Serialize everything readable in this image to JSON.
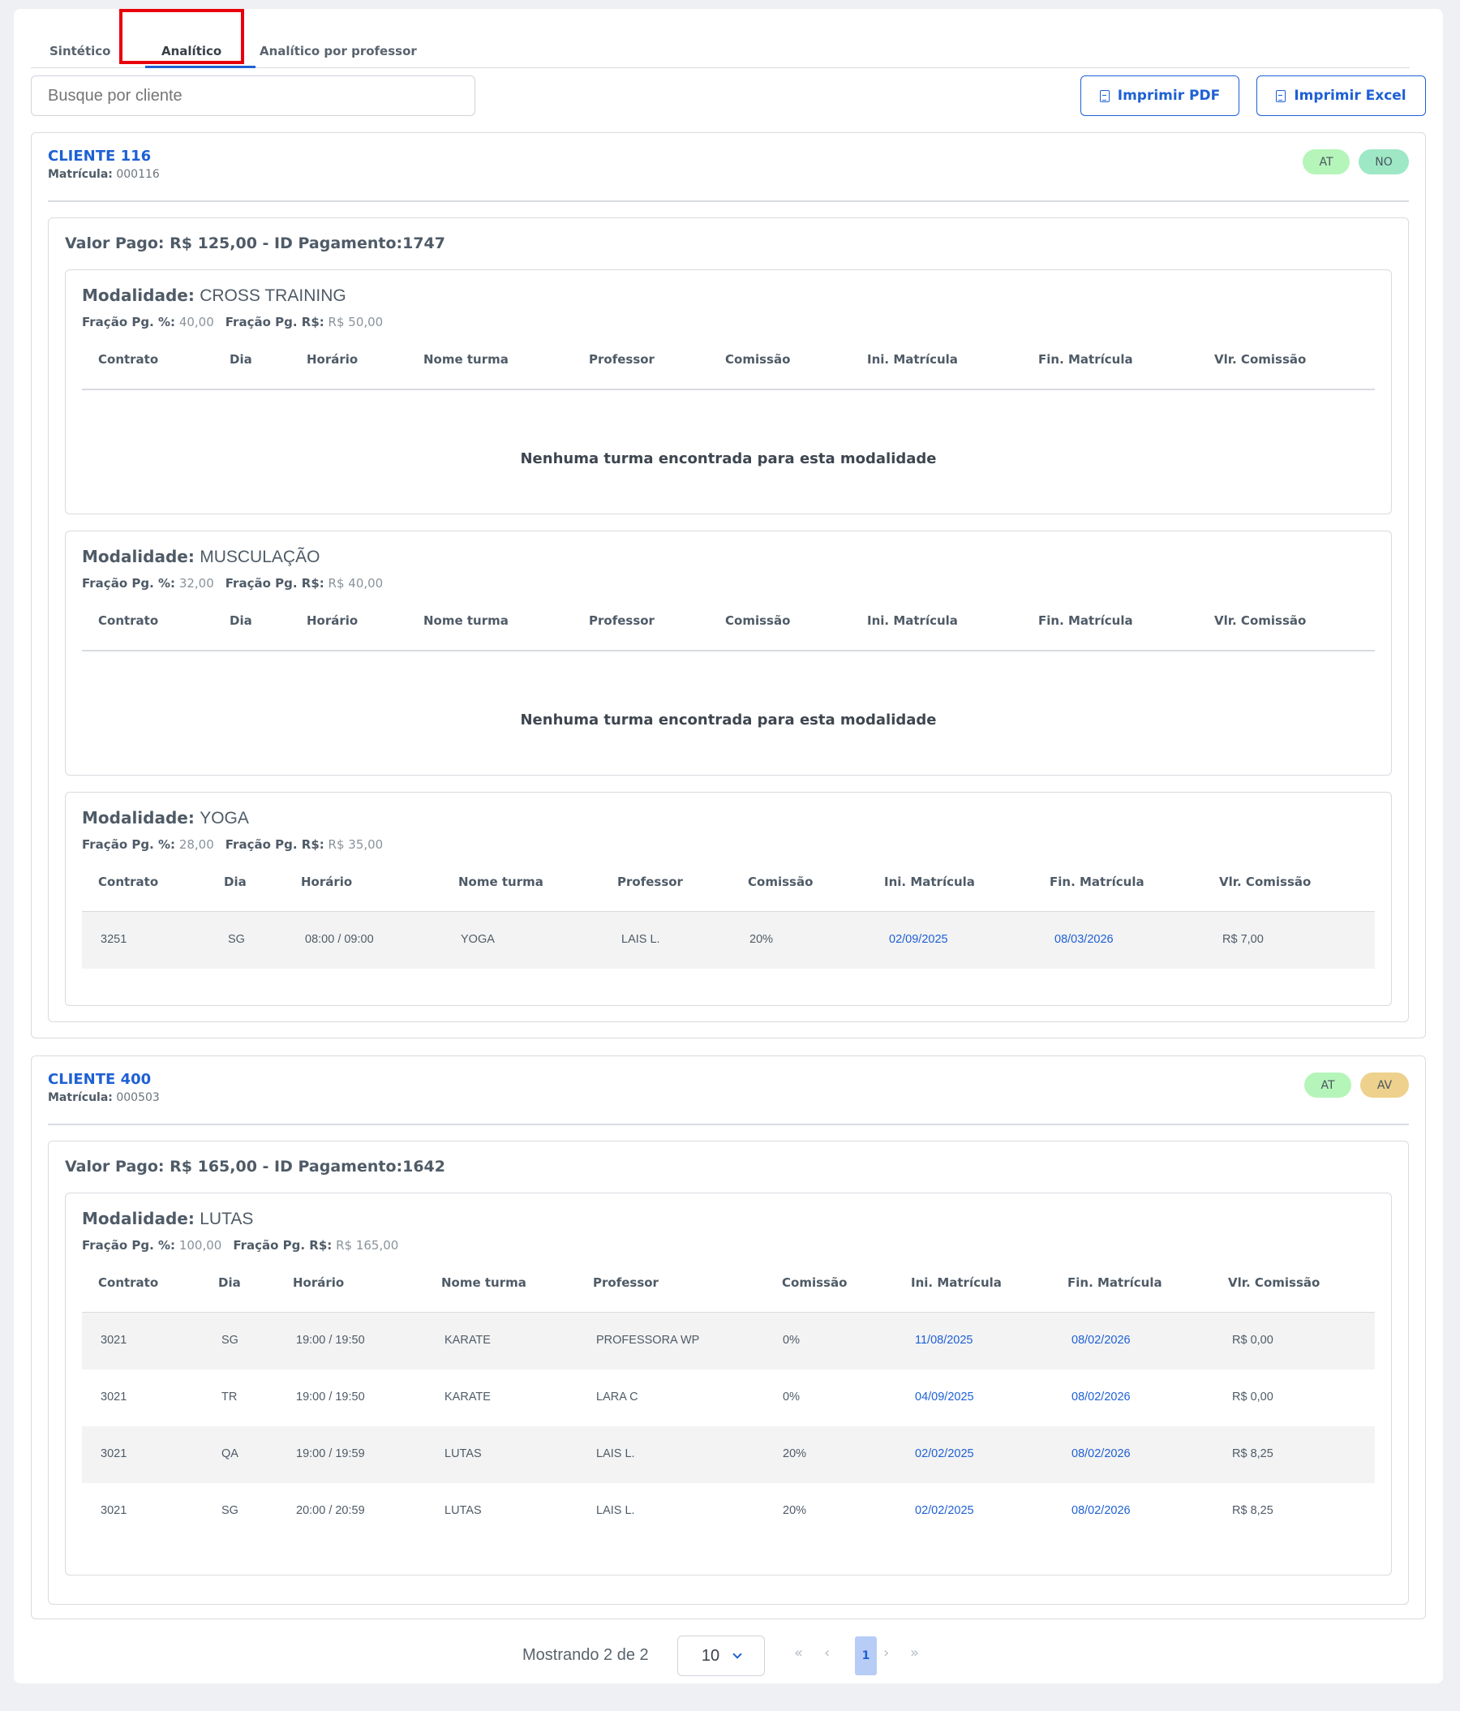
{
  "tabs": {
    "sintetico": "Sintético",
    "analitico": "Analítico",
    "por_professor": "Analítico por professor"
  },
  "search": {
    "placeholder": "Busque por cliente"
  },
  "actions": {
    "pdf": "Imprimir PDF",
    "excel": "Imprimir Excel"
  },
  "colors": {
    "accent": "#1e60d5",
    "badge_at": "#b5f5b9",
    "badge_no": "#9ee8c5",
    "badge_av": "#eed18c",
    "highlight": "#e8000b"
  },
  "columns": [
    "Contrato",
    "Dia",
    "Horário",
    "Nome turma",
    "Professor",
    "Comissão",
    "Ini. Matrícula",
    "Fin. Matrícula",
    "Vlr. Comissão"
  ],
  "labels": {
    "matricula": "Matrícula:",
    "modalidade": "Modalidade:",
    "fracao_pct": "Fração Pg. %:",
    "fracao_rs": "Fração Pg. R$:",
    "empty": "Nenhuma turma encontrada para esta modalidade"
  },
  "clients": [
    {
      "name": "CLIENTE 116",
      "matricula": "000116",
      "badges": [
        "AT",
        "NO"
      ],
      "payment": "Valor Pago: R$ 125,00 - ID Pagamento:1747",
      "modalidades": [
        {
          "name": "CROSS TRAINING",
          "fracao_pct": "40,00",
          "fracao_rs": "R$ 50,00",
          "rows": []
        },
        {
          "name": "MUSCULAÇÃO",
          "fracao_pct": "32,00",
          "fracao_rs": "R$ 40,00",
          "rows": []
        },
        {
          "name": "YOGA",
          "fracao_pct": "28,00",
          "fracao_rs": "R$ 35,00",
          "rows": [
            [
              "3251",
              "SG",
              "08:00 / 09:00",
              "YOGA",
              "LAIS L.",
              "20%",
              "02/09/2025",
              "08/03/2026",
              "R$ 7,00"
            ]
          ]
        }
      ]
    },
    {
      "name": "CLIENTE 400",
      "matricula": "000503",
      "badges": [
        "AT",
        "AV"
      ],
      "payment": "Valor Pago: R$ 165,00 - ID Pagamento:1642",
      "modalidades": [
        {
          "name": "LUTAS",
          "fracao_pct": "100,00",
          "fracao_rs": "R$ 165,00",
          "rows": [
            [
              "3021",
              "SG",
              "19:00 / 19:50",
              "KARATE",
              "PROFESSORA WP",
              "0%",
              "11/08/2025",
              "08/02/2026",
              "R$ 0,00"
            ],
            [
              "3021",
              "TR",
              "19:00 / 19:50",
              "KARATE",
              "LARA C",
              "0%",
              "04/09/2025",
              "08/02/2026",
              "R$ 0,00"
            ],
            [
              "3021",
              "QA",
              "19:00 / 19:59",
              "LUTAS",
              "LAIS L.",
              "20%",
              "02/02/2025",
              "08/02/2026",
              "R$ 8,25"
            ],
            [
              "3021",
              "SG",
              "20:00 / 20:59",
              "LUTAS",
              "LAIS L.",
              "20%",
              "02/02/2025",
              "08/02/2026",
              "R$ 8,25"
            ]
          ]
        }
      ]
    }
  ],
  "pagination": {
    "showing": "Mostrando 2 de 2",
    "page_size": "10",
    "first": "«",
    "prev": "‹",
    "current": "1",
    "next": "›",
    "last": "»"
  }
}
